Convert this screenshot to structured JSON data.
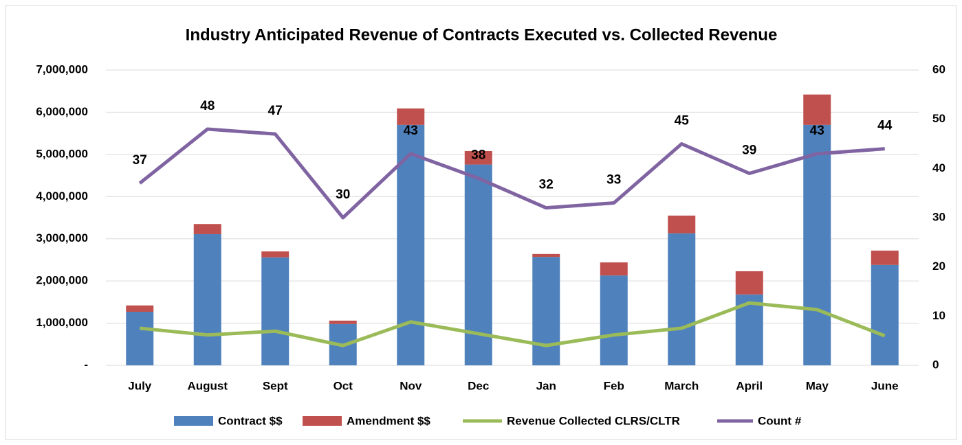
{
  "chart_data": {
    "type": "combo",
    "title": "Industry Anticipated Revenue of Contracts Executed vs. Collected Revenue",
    "categories": [
      "July",
      "August",
      "Sept",
      "Oct",
      "Nov",
      "Dec",
      "Jan",
      "Feb",
      "March",
      "April",
      "May",
      "June"
    ],
    "series": [
      {
        "name": "Contract $$",
        "type": "bar",
        "color": "#4f81bd",
        "values": [
          1270000,
          3110000,
          2560000,
          980000,
          5700000,
          4760000,
          2570000,
          2130000,
          3130000,
          1680000,
          5700000,
          2380000
        ]
      },
      {
        "name": "Amendment $$",
        "type": "bar",
        "color": "#c0504d",
        "values": [
          150000,
          240000,
          140000,
          80000,
          390000,
          320000,
          70000,
          310000,
          420000,
          550000,
          720000,
          340000
        ]
      },
      {
        "name": "Revenue Collected CLRS/CLTR",
        "type": "line",
        "color": "#9bbb59",
        "values": [
          880000,
          720000,
          810000,
          470000,
          1030000,
          750000,
          470000,
          720000,
          880000,
          1480000,
          1320000,
          700000
        ]
      },
      {
        "name": "Count #",
        "type": "line",
        "axis": "y2",
        "color": "#8064a2",
        "values": [
          37,
          48,
          47,
          30,
          43,
          38,
          32,
          33,
          45,
          39,
          43,
          44
        ]
      }
    ],
    "ylim": [
      0,
      7000000
    ],
    "yticks": [
      {
        "value": 0,
        "label": "-"
      },
      {
        "value": 1000000,
        "label": "1,000,000"
      },
      {
        "value": 2000000,
        "label": "2,000,000"
      },
      {
        "value": 3000000,
        "label": "3,000,000"
      },
      {
        "value": 4000000,
        "label": "4,000,000"
      },
      {
        "value": 5000000,
        "label": "5,000,000"
      },
      {
        "value": 6000000,
        "label": "6,000,000"
      },
      {
        "value": 7000000,
        "label": "7,000,000"
      }
    ],
    "y2lim": [
      0,
      60
    ],
    "y2ticks": [
      0,
      10,
      20,
      30,
      40,
      50,
      60
    ],
    "grid": true,
    "legend": "bottom"
  }
}
